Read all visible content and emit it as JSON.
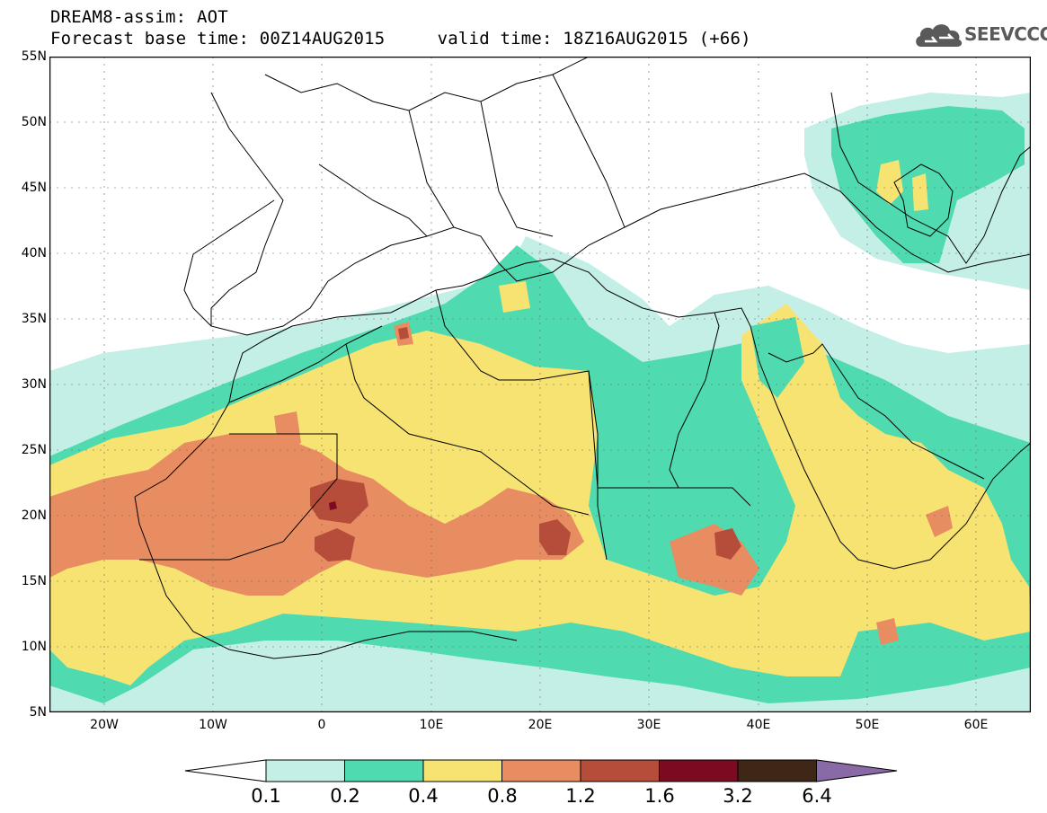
{
  "header": {
    "title_line": "DREAM8-assim: AOT",
    "time_line": "Forecast base time: 00Z14AUG2015     valid time: 18Z16AUG2015 (+66)"
  },
  "logo": {
    "text": "SEEVCCC",
    "icon": "cloud-icon"
  },
  "map": {
    "lat_labels": [
      "55N",
      "50N",
      "45N",
      "40N",
      "35N",
      "30N",
      "25N",
      "20N",
      "15N",
      "10N",
      "5N"
    ],
    "lon_labels": [
      "20W",
      "10W",
      "0",
      "10E",
      "20E",
      "30E",
      "40E",
      "50E",
      "60E"
    ],
    "lat_range": [
      5,
      55
    ],
    "lon_range": [
      -25,
      65
    ]
  },
  "colorbar": {
    "labels": [
      "0.1",
      "0.2",
      "0.4",
      "0.8",
      "1.2",
      "1.6",
      "3.2",
      "6.4"
    ],
    "colors": [
      "#ffffff",
      "#c4efe6",
      "#4fdaaf",
      "#f6e372",
      "#e88c62",
      "#b64d3a",
      "#7c0a21",
      "#3e2716",
      "#8a6aa6"
    ]
  }
}
